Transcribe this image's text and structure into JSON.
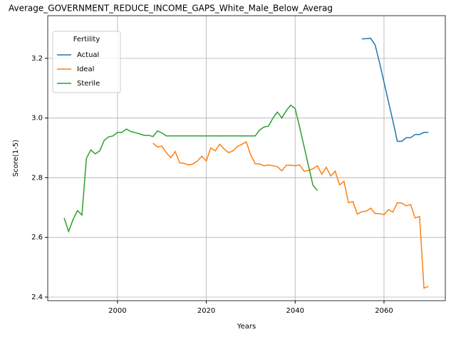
{
  "chart_data": {
    "type": "line",
    "title": "Average_GOVERNMENT_REDUCE_INCOME_GAPS_White_Male_Below_Averag",
    "x_label": "Years",
    "y_label": "Score(1-5)",
    "legend_title": "Fertility",
    "legend_loc": "upper left",
    "grid": true,
    "xlim": [
      1984.3,
      2073.8
    ],
    "ylim": [
      2.388,
      3.343
    ],
    "xticks": [
      2000,
      2020,
      2040,
      2060
    ],
    "yticks": [
      2.4,
      2.6,
      2.8,
      {
        "value": 3,
        "label": "3.0"
      },
      3.2
    ],
    "x": [
      1988,
      1989,
      1990,
      1991,
      1992,
      1993,
      1994,
      1995,
      1996,
      1997,
      1998,
      1999,
      2000,
      2001,
      2002,
      2003,
      2004,
      2005,
      2006,
      2007,
      2008,
      2009,
      2010,
      2011,
      2012,
      2013,
      2014,
      2015,
      2016,
      2017,
      2018,
      2019,
      2020,
      2021,
      2022,
      2023,
      2024,
      2025,
      2026,
      2027,
      2028,
      2029,
      2030,
      2031,
      2032,
      2033,
      2034,
      2035,
      2036,
      2037,
      2038,
      2039,
      2040,
      2041,
      2042,
      2043,
      2044,
      2045,
      2046,
      2047,
      2048,
      2049,
      2050,
      2051,
      2052,
      2053,
      2054,
      2055,
      2056,
      2057,
      2058,
      2059,
      2060,
      2061,
      2062,
      2063,
      2064,
      2065,
      2066,
      2067,
      2068,
      2069,
      2070
    ],
    "series": [
      {
        "name": "Actual",
        "color": "#1f77b4",
        "values": [
          null,
          null,
          null,
          null,
          null,
          null,
          null,
          null,
          null,
          null,
          null,
          null,
          null,
          null,
          null,
          null,
          null,
          null,
          null,
          null,
          null,
          null,
          null,
          null,
          null,
          null,
          null,
          null,
          null,
          null,
          null,
          null,
          null,
          null,
          null,
          null,
          null,
          null,
          null,
          null,
          null,
          null,
          null,
          null,
          null,
          null,
          null,
          null,
          null,
          null,
          null,
          null,
          null,
          null,
          null,
          null,
          null,
          null,
          null,
          null,
          null,
          null,
          null,
          null,
          null,
          null,
          null,
          3.265,
          3.266,
          3.267,
          3.245,
          3.185,
          3.12,
          3.055,
          2.99,
          2.922,
          2.922,
          2.934,
          2.934,
          2.945,
          2.945,
          2.952,
          2.952
        ]
      },
      {
        "name": "Ideal",
        "color": "#ff7f0e",
        "values": [
          null,
          null,
          null,
          null,
          null,
          null,
          null,
          null,
          null,
          null,
          null,
          null,
          null,
          null,
          null,
          null,
          null,
          null,
          null,
          null,
          2.916,
          2.903,
          2.906,
          2.884,
          2.867,
          2.888,
          2.85,
          2.848,
          2.843,
          2.846,
          2.856,
          2.872,
          2.856,
          2.9,
          2.89,
          2.912,
          2.897,
          2.884,
          2.89,
          2.905,
          2.912,
          2.92,
          2.876,
          2.847,
          2.846,
          2.84,
          2.843,
          2.84,
          2.837,
          2.823,
          2.842,
          2.842,
          2.84,
          2.843,
          2.822,
          2.824,
          2.83,
          2.84,
          2.812,
          2.835,
          2.806,
          2.822,
          2.776,
          2.788,
          2.716,
          2.72,
          2.678,
          2.686,
          2.688,
          2.698,
          2.68,
          2.68,
          2.676,
          2.693,
          2.685,
          2.716,
          2.715,
          2.706,
          2.71,
          2.665,
          2.67,
          2.43,
          2.436
        ]
      },
      {
        "name": "Sterile",
        "color": "#2ca02c",
        "values": [
          2.665,
          2.62,
          2.66,
          2.69,
          2.675,
          2.865,
          2.893,
          2.88,
          2.89,
          2.925,
          2.937,
          2.94,
          2.952,
          2.952,
          2.963,
          2.955,
          2.951,
          2.947,
          2.942,
          2.942,
          2.938,
          2.957,
          2.95,
          2.94,
          2.94,
          2.94,
          2.94,
          2.94,
          2.94,
          2.94,
          2.94,
          2.94,
          2.94,
          2.94,
          2.94,
          2.94,
          2.94,
          2.94,
          2.94,
          2.94,
          2.94,
          2.94,
          2.94,
          2.94,
          2.96,
          2.97,
          2.973,
          3.0,
          3.02,
          3.0,
          3.025,
          3.043,
          3.032,
          2.97,
          2.905,
          2.84,
          2.775,
          2.757,
          null,
          null,
          null,
          null,
          null,
          null,
          null,
          null,
          null,
          null,
          null,
          null,
          null,
          null,
          null,
          null,
          null,
          null,
          null,
          null,
          null,
          null,
          null,
          null,
          null
        ]
      }
    ]
  }
}
